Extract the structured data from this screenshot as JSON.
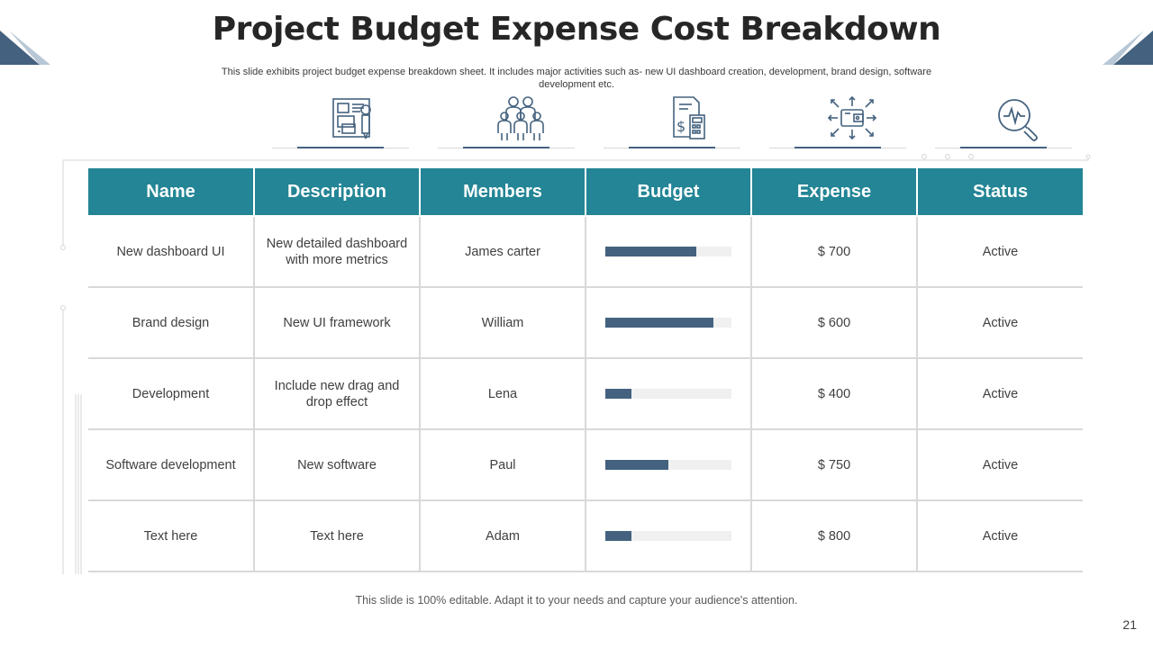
{
  "slide": {
    "title": "Project Budget Expense Cost Breakdown",
    "subtitle": "This slide exhibits project budget expense breakdown sheet. It includes major activities such as- new UI dashboard creation, development, brand design, software development etc.",
    "footer": "This slide is 100% editable. Adapt it to your needs and capture your audience's attention.",
    "page_number": "21"
  },
  "icons": [
    "dashboard-board-icon",
    "team-group-icon",
    "budget-calculator-icon",
    "wallet-money-flow-icon",
    "analysis-magnifier-icon"
  ],
  "colors": {
    "header_bg": "#238595",
    "bar_fill": "#44627f",
    "bar_track": "#f0f0f0",
    "grid": "#d9d9d9"
  },
  "table": {
    "headers": [
      "Name",
      "Description",
      "Members",
      "Budget",
      "Expense",
      "Status"
    ],
    "rows": [
      {
        "name": "New dashboard UI",
        "description": "New detailed dashboard with more metrics",
        "members": "James carter",
        "budget_level": 0.72,
        "expense": "$ 700",
        "status": "Active"
      },
      {
        "name": "Brand design",
        "description": "New UI framework",
        "members": "William",
        "budget_level": 0.86,
        "expense": "$ 600",
        "status": "Active"
      },
      {
        "name": "Development",
        "description": "Include new drag and drop effect",
        "members": "Lena",
        "budget_level": 0.21,
        "expense": "$ 400",
        "status": "Active"
      },
      {
        "name": "Software development",
        "description": "New software",
        "members": "Paul",
        "budget_level": 0.5,
        "expense": "$ 750",
        "status": "Active"
      },
      {
        "name": "Text here",
        "description": "Text here",
        "members": "Adam",
        "budget_level": 0.21,
        "expense": "$ 800",
        "status": "Active"
      }
    ]
  }
}
